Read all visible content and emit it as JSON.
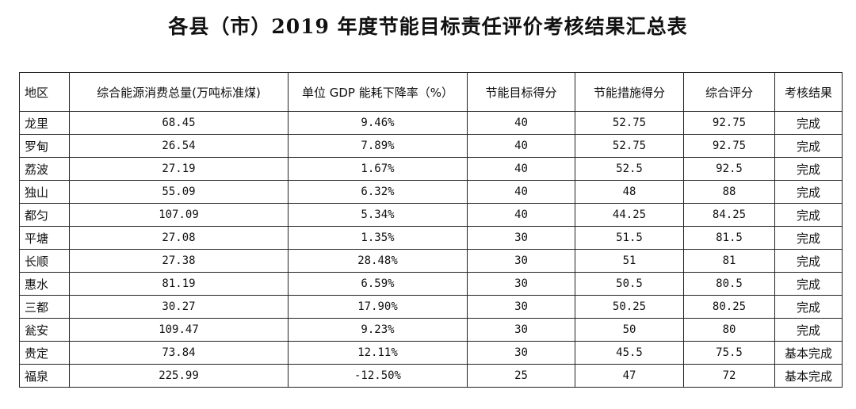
{
  "title": "各县（市）2019 年度节能目标责任评价考核结果汇总表",
  "table": {
    "headers": [
      "地区",
      "综合能源消费总量(万吨标准煤)",
      "单位 GDP 能耗下降率（%）",
      "节能目标得分",
      "节能措施得分",
      "综合评分",
      "考核结果"
    ],
    "rows": [
      [
        "龙里",
        "68.45",
        "9.46%",
        "40",
        "52.75",
        "92.75",
        "完成"
      ],
      [
        "罗甸",
        "26.54",
        "7.89%",
        "40",
        "52.75",
        "92.75",
        "完成"
      ],
      [
        "荔波",
        "27.19",
        "1.67%",
        "40",
        "52.5",
        "92.5",
        "完成"
      ],
      [
        "独山",
        "55.09",
        "6.32%",
        "40",
        "48",
        "88",
        "完成"
      ],
      [
        "都匀",
        "107.09",
        "5.34%",
        "40",
        "44.25",
        "84.25",
        "完成"
      ],
      [
        "平塘",
        "27.08",
        "1.35%",
        "30",
        "51.5",
        "81.5",
        "完成"
      ],
      [
        "长顺",
        "27.38",
        "28.48%",
        "30",
        "51",
        "81",
        "完成"
      ],
      [
        "惠水",
        "81.19",
        "6.59%",
        "30",
        "50.5",
        "80.5",
        "完成"
      ],
      [
        "三都",
        "30.27",
        "17.90%",
        "30",
        "50.25",
        "80.25",
        "完成"
      ],
      [
        "瓮安",
        "109.47",
        "9.23%",
        "30",
        "50",
        "80",
        "完成"
      ],
      [
        "贵定",
        "73.84",
        "12.11%",
        "30",
        "45.5",
        "75.5",
        "基本完成"
      ],
      [
        "福泉",
        "225.99",
        "-12.50%",
        "25",
        "47",
        "72",
        "基本完成"
      ]
    ]
  }
}
